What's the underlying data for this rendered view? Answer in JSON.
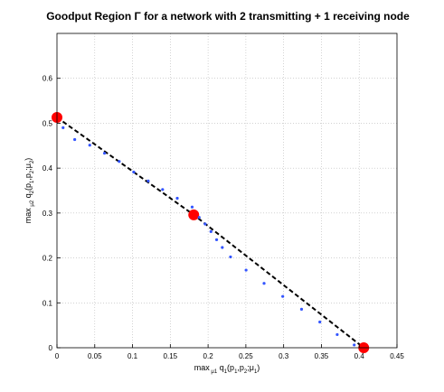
{
  "chart_data": {
    "type": "scatter",
    "title": "Goodput Region Γ for a network with 2 transmitting + 1 receiving node",
    "xlabel": {
      "parts": [
        "max",
        " μ",
        "1",
        " q",
        "1",
        "(p",
        "1",
        ",p",
        "2",
        ";μ",
        "1",
        ")"
      ],
      "sub": [
        false,
        true,
        true,
        false,
        true,
        false,
        true,
        false,
        true,
        false,
        true,
        false
      ]
    },
    "ylabel": {
      "parts": [
        "max",
        " μ",
        "2",
        " q",
        "2",
        "(p",
        "1",
        ",p",
        "2",
        ";μ",
        "2",
        ")"
      ],
      "sub": [
        false,
        true,
        true,
        false,
        true,
        false,
        true,
        false,
        true,
        false,
        true,
        false
      ]
    },
    "xlim": [
      0,
      0.45
    ],
    "ylim": [
      0,
      0.7
    ],
    "xticks": [
      0,
      0.05,
      0.1,
      0.15,
      0.2,
      0.25,
      0.3,
      0.35,
      0.4,
      0.45
    ],
    "xtick_labels": [
      "0",
      "0.05",
      "0.1",
      "0.15",
      "0.2",
      "0.25",
      "0.3",
      "0.35",
      "0.4",
      "0.45"
    ],
    "yticks": [
      0,
      0.1,
      0.2,
      0.3,
      0.4,
      0.5,
      0.6
    ],
    "ytick_labels": [
      "0",
      "0.1",
      "0.2",
      "0.3",
      "0.4",
      "0.5",
      "0.6"
    ],
    "grid": true,
    "series": [
      {
        "style": "dashed-line",
        "color": "#000000",
        "x": [
          0,
          0.181,
          0.406
        ],
        "y": [
          0.513,
          0.296,
          0
        ]
      },
      {
        "style": "circle-markers",
        "color": "#ff0000",
        "x": [
          0,
          0.181,
          0.406
        ],
        "y": [
          0.513,
          0.296,
          0
        ]
      },
      {
        "style": "dot-markers",
        "color": "#3355ff",
        "x": [
          0.0081,
          0.0235,
          0.0434,
          0.0629,
          0.0824,
          0.1016,
          0.1208,
          0.1398,
          0.1592,
          0.1789,
          0.1882,
          0.1961,
          0.2038,
          0.2113,
          0.2188,
          0.2297,
          0.2503,
          0.2741,
          0.2988,
          0.3237,
          0.3479,
          0.3709,
          0.3934
        ],
        "y": [
          0.4901,
          0.4636,
          0.4512,
          0.4331,
          0.4148,
          0.3913,
          0.3714,
          0.3524,
          0.3329,
          0.3134,
          0.2903,
          0.2755,
          0.2587,
          0.2405,
          0.2233,
          0.2023,
          0.1729,
          0.1434,
          0.1143,
          0.0858,
          0.0574,
          0.0293,
          0.0062
        ]
      }
    ]
  }
}
